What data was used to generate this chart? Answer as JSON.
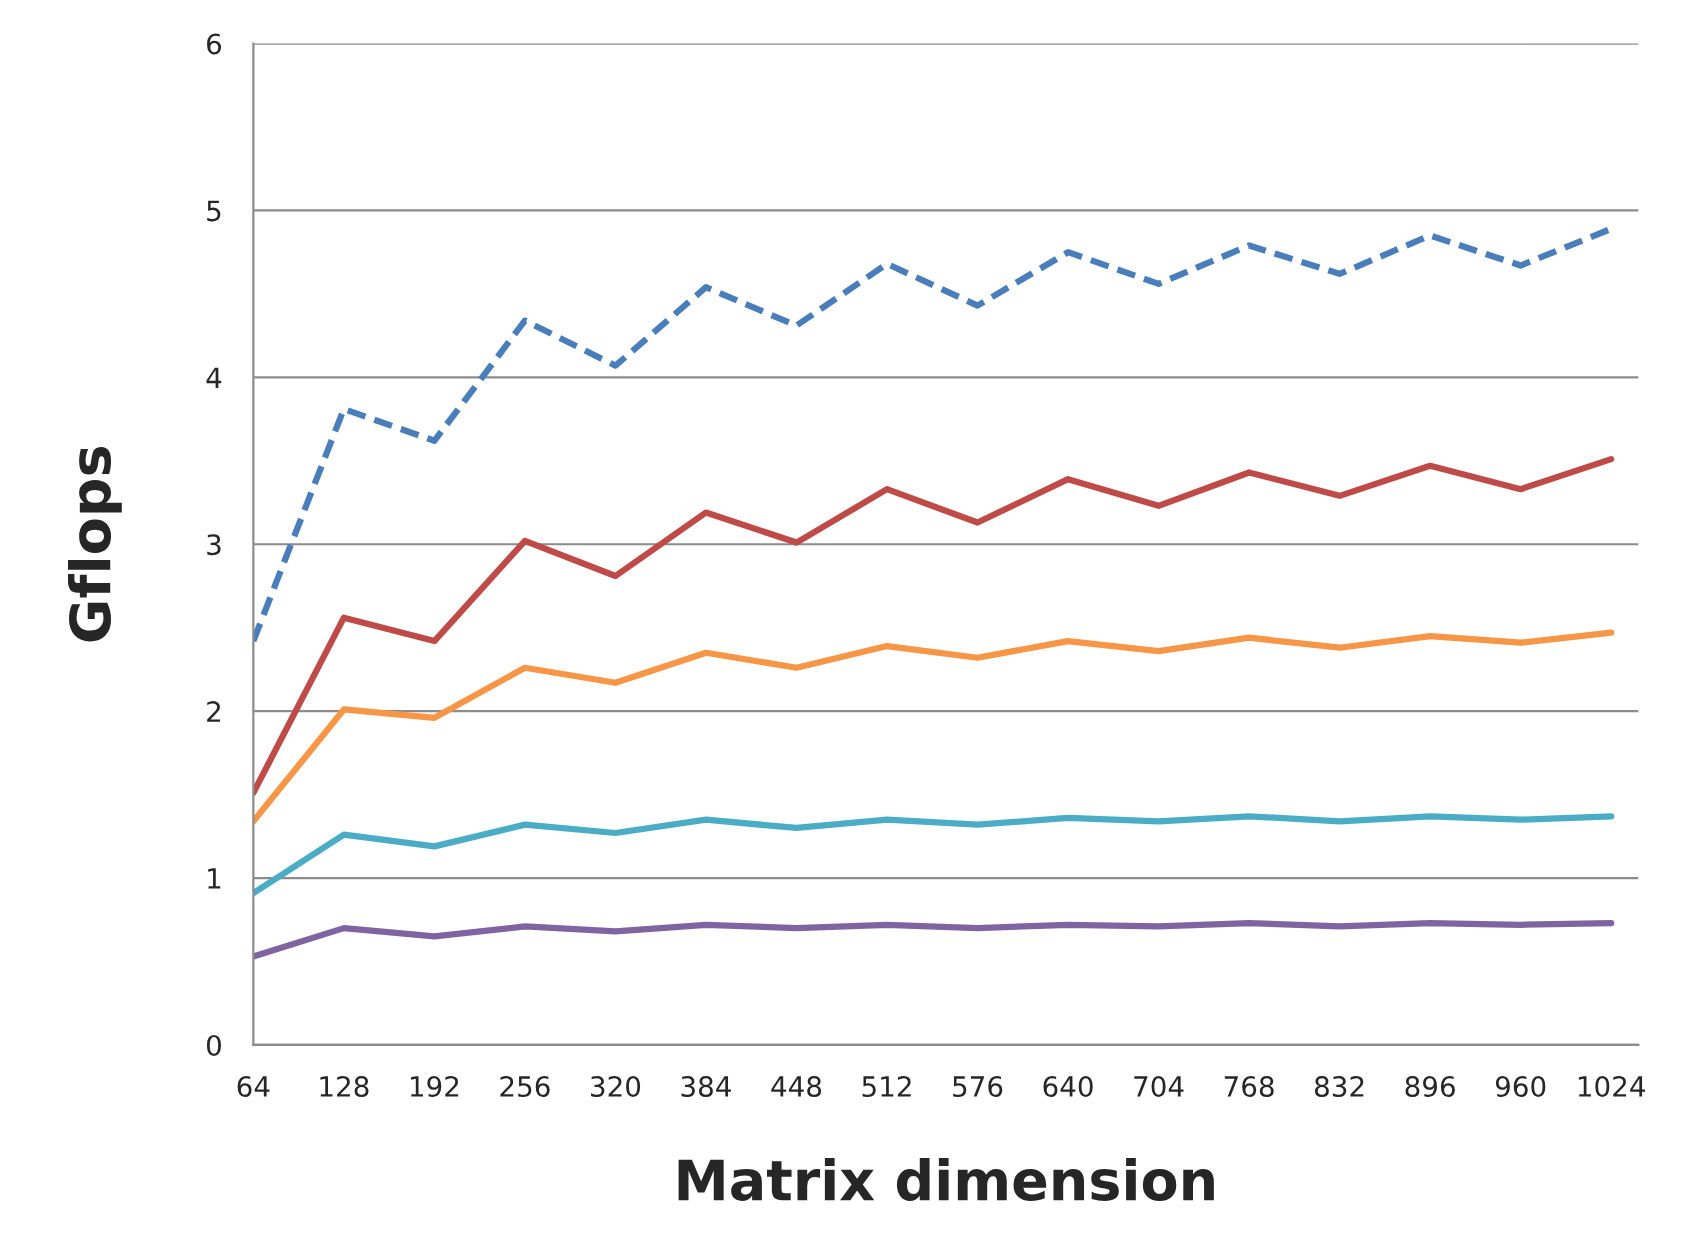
{
  "chart_data": {
    "type": "line",
    "xlabel": "Matrix dimension",
    "ylabel": "Gflops",
    "categories": [
      "64",
      "128",
      "192",
      "256",
      "320",
      "384",
      "448",
      "512",
      "576",
      "640",
      "704",
      "768",
      "832",
      "896",
      "960",
      "1024"
    ],
    "series": [
      {
        "color": "#4a7ebb",
        "line_style": "dashed",
        "values": [
          2.42,
          3.81,
          3.62,
          4.34,
          4.07,
          4.54,
          4.31,
          4.68,
          4.43,
          4.75,
          4.56,
          4.79,
          4.62,
          4.85,
          4.67,
          4.89
        ]
      },
      {
        "color": "#be4b48",
        "line_style": "solid",
        "values": [
          1.51,
          2.56,
          2.42,
          3.02,
          2.81,
          3.19,
          3.01,
          3.33,
          3.13,
          3.39,
          3.23,
          3.43,
          3.29,
          3.47,
          3.33,
          3.51
        ]
      },
      {
        "color": "#f79646",
        "line_style": "solid",
        "values": [
          1.34,
          2.01,
          1.96,
          2.26,
          2.17,
          2.35,
          2.26,
          2.39,
          2.32,
          2.42,
          2.36,
          2.44,
          2.38,
          2.45,
          2.41,
          2.47
        ]
      },
      {
        "color": "#4bacc6",
        "line_style": "solid",
        "values": [
          0.91,
          1.26,
          1.19,
          1.32,
          1.27,
          1.35,
          1.3,
          1.35,
          1.32,
          1.36,
          1.34,
          1.37,
          1.34,
          1.37,
          1.35,
          1.37
        ]
      },
      {
        "color": "#8064a2",
        "line_style": "solid",
        "values": [
          0.53,
          0.7,
          0.65,
          0.71,
          0.68,
          0.72,
          0.7,
          0.72,
          0.7,
          0.72,
          0.71,
          0.73,
          0.71,
          0.73,
          0.72,
          0.73
        ]
      }
    ],
    "ylim": [
      0,
      6
    ],
    "yticks": [
      0,
      1,
      2,
      3,
      4,
      5,
      6
    ],
    "grid": "y",
    "legend": false,
    "marker": "none"
  }
}
